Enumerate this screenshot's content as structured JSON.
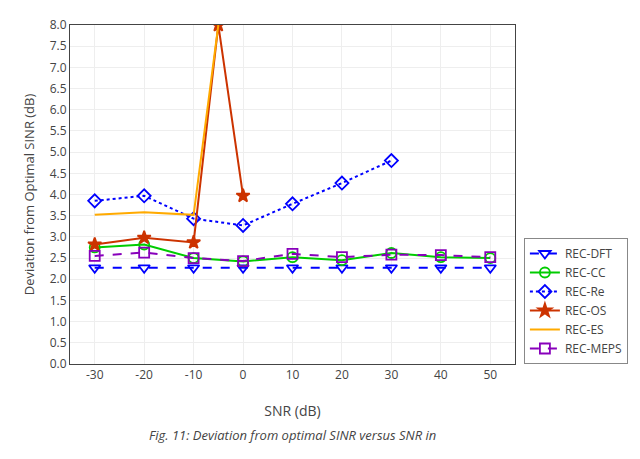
{
  "chart_data": {
    "type": "line",
    "xlabel": "SNR (dB)",
    "ylabel": "Deviation from Optimal SINR (dB)",
    "caption": "Fig. 11: Deviation from optimal SINR versus SNR in",
    "series": [
      {
        "name": "REC-DFT",
        "color": "#0000ff",
        "line_style": "dashed",
        "marker": "triangle-down-open",
        "x": [
          -30,
          -20,
          -10,
          0,
          10,
          20,
          30,
          40,
          50
        ],
        "values": [
          2.27,
          2.27,
          2.27,
          2.27,
          2.27,
          2.27,
          2.27,
          2.27,
          2.27
        ]
      },
      {
        "name": "REC-CC",
        "color": "#00cc00",
        "line_style": "solid",
        "marker": "circle-open",
        "x": [
          -30,
          -20,
          -10,
          0,
          10,
          20,
          30,
          40,
          50
        ],
        "values": [
          2.75,
          2.82,
          2.5,
          2.42,
          2.52,
          2.45,
          2.62,
          2.52,
          2.5
        ]
      },
      {
        "name": "REC-Re",
        "color": "#0000ff",
        "line_style": "dotted",
        "marker": "diamond-open",
        "x": [
          -30,
          -20,
          -10,
          0,
          10,
          20,
          30
        ],
        "values": [
          3.85,
          3.97,
          3.43,
          3.27,
          3.78,
          4.27,
          4.8
        ]
      },
      {
        "name": "REC-OS",
        "color": "#cc3300",
        "line_style": "solid",
        "marker": "star",
        "x": [
          -30,
          -20,
          -10,
          -5,
          0
        ],
        "values": [
          2.82,
          2.98,
          2.87,
          8.0,
          3.97
        ]
      },
      {
        "name": "REC-ES",
        "color": "#ffaa00",
        "line_style": "solid",
        "marker": "none",
        "x": [
          -30,
          -20,
          -10,
          -5
        ],
        "values": [
          3.52,
          3.58,
          3.52,
          8.0
        ]
      },
      {
        "name": "REC-MEPS",
        "color": "#8800bb",
        "line_style": "dashed",
        "marker": "square-open",
        "x": [
          -30,
          -20,
          -10,
          0,
          10,
          20,
          30,
          40,
          50
        ],
        "values": [
          2.55,
          2.63,
          2.5,
          2.43,
          2.6,
          2.52,
          2.58,
          2.57,
          2.52
        ]
      }
    ],
    "xlim": [
      -35,
      55
    ],
    "xticks": [
      -30,
      -20,
      -10,
      0,
      10,
      20,
      30,
      40,
      50
    ],
    "ylim": [
      0,
      8
    ],
    "yticks": [
      {
        "value": 0,
        "label": "0.0"
      },
      0.5,
      {
        "value": 1,
        "label": "1.0"
      },
      1.5,
      {
        "value": 2,
        "label": "2.0"
      },
      2.5,
      {
        "value": 3,
        "label": "3.0"
      },
      3.5,
      {
        "value": 4,
        "label": "4.0"
      },
      4.5,
      {
        "value": 5,
        "label": "5.0"
      },
      5.5,
      {
        "value": 6,
        "label": "6.0"
      },
      6.5,
      {
        "value": 7,
        "label": "7.0"
      },
      7.5,
      {
        "value": 8,
        "label": "8.0"
      }
    ],
    "grid": true,
    "legend": "lower right"
  }
}
